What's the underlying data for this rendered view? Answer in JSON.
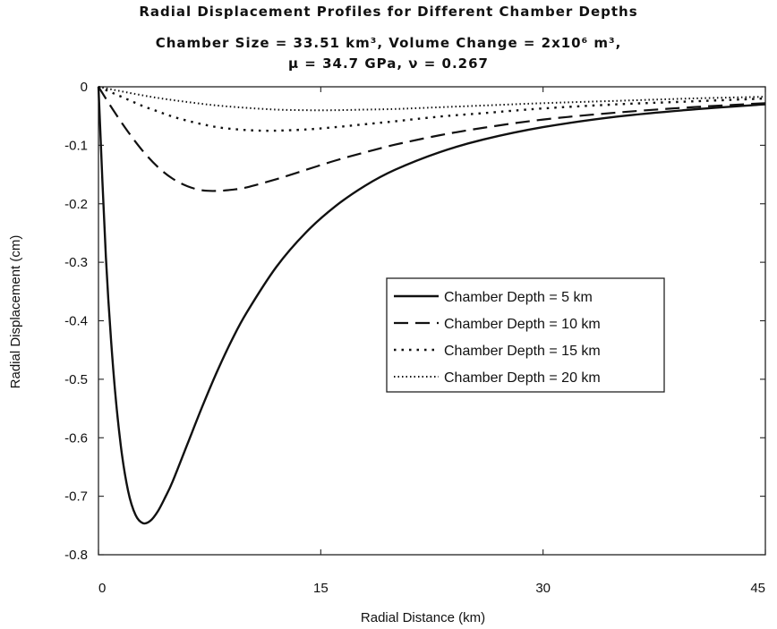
{
  "chart_data": {
    "type": "line",
    "title": "Radial Displacement Profiles for Different Chamber Depths",
    "subtitle_1": "Chamber Size = 33.51 km³, Volume Change = 2x10⁶ m³,",
    "subtitle_2": "μ = 34.7 GPa, ν = 0.267",
    "xlabel": "Radial Distance (km)",
    "ylabel": "Radial Displacement (cm)",
    "xlim": [
      0,
      45
    ],
    "ylim": [
      -0.8,
      0
    ],
    "x_ticks": [
      0,
      15,
      30,
      45
    ],
    "x_tick_labels": [
      "0",
      "15",
      "30",
      "45"
    ],
    "y_ticks": [
      0,
      -0.1,
      -0.2,
      -0.3,
      -0.4,
      -0.5,
      -0.6,
      -0.7,
      -0.8
    ],
    "y_tick_labels": [
      "0",
      "-0.1",
      "-0.2",
      "-0.3",
      "-0.4",
      "-0.5",
      "-0.6",
      "-0.7",
      "-0.8"
    ],
    "grid": false,
    "legend_placement": "center-right",
    "series": [
      {
        "name": "Chamber Depth = 5 km",
        "style": "solid",
        "x": [
          0,
          0.5,
          1,
          1.5,
          2,
          2.5,
          3,
          3.5,
          4,
          4.5,
          5,
          6,
          7,
          8,
          9,
          10,
          12,
          14,
          16,
          18,
          20,
          23,
          26,
          30,
          35,
          40,
          45
        ],
        "y": [
          0,
          -0.291,
          -0.484,
          -0.612,
          -0.691,
          -0.732,
          -0.746,
          -0.742,
          -0.726,
          -0.702,
          -0.675,
          -0.611,
          -0.547,
          -0.487,
          -0.433,
          -0.386,
          -0.308,
          -0.249,
          -0.204,
          -0.169,
          -0.142,
          -0.112,
          -0.09,
          -0.069,
          -0.051,
          -0.039,
          -0.03
        ]
      },
      {
        "name": "Chamber Depth = 10 km",
        "style": "dashed",
        "x": [
          0,
          1,
          2,
          3,
          4,
          5,
          6,
          7,
          8,
          9,
          10,
          12,
          14,
          16,
          18,
          20,
          23,
          26,
          30,
          35,
          40,
          45
        ],
        "y": [
          0,
          -0.04,
          -0.077,
          -0.11,
          -0.137,
          -0.157,
          -0.17,
          -0.177,
          -0.178,
          -0.176,
          -0.172,
          -0.158,
          -0.142,
          -0.126,
          -0.112,
          -0.099,
          -0.083,
          -0.07,
          -0.056,
          -0.044,
          -0.035,
          -0.028
        ]
      },
      {
        "name": "Chamber Depth = 15 km",
        "style": "dotted",
        "x": [
          0,
          1,
          2,
          3,
          4,
          5,
          6,
          7,
          8,
          9,
          10,
          11,
          12,
          14,
          16,
          18,
          20,
          23,
          26,
          30,
          35,
          40,
          45
        ],
        "y": [
          0,
          -0.011,
          -0.022,
          -0.033,
          -0.042,
          -0.051,
          -0.058,
          -0.064,
          -0.069,
          -0.072,
          -0.074,
          -0.075,
          -0.075,
          -0.073,
          -0.069,
          -0.064,
          -0.059,
          -0.051,
          -0.045,
          -0.037,
          -0.03,
          -0.025,
          -0.02
        ]
      },
      {
        "name": "Chamber Depth = 20 km",
        "style": "dash-dot",
        "x": [
          0,
          2,
          4,
          6,
          8,
          10,
          12,
          14,
          16,
          18,
          20,
          23,
          26,
          30,
          35,
          40,
          45
        ],
        "y": [
          0,
          -0.01,
          -0.019,
          -0.026,
          -0.032,
          -0.036,
          -0.039,
          -0.04,
          -0.04,
          -0.039,
          -0.038,
          -0.035,
          -0.032,
          -0.028,
          -0.024,
          -0.02,
          -0.017
        ]
      }
    ]
  }
}
